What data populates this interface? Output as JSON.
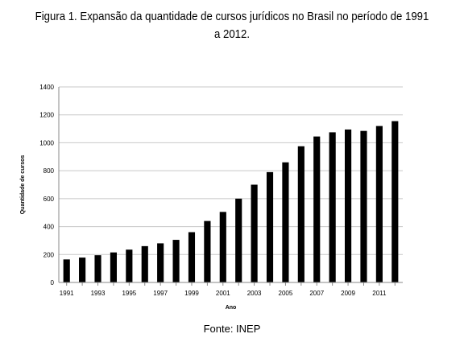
{
  "caption": {
    "line1": "Figura 1. Expansão da quantidade de cursos jurídicos no Brasil no período de 1991",
    "line2": "a 2012."
  },
  "source_note": "Fonte: INEP",
  "chart_data": {
    "type": "bar",
    "categories": [
      "1991",
      "1992",
      "1993",
      "1994",
      "1995",
      "1996",
      "1997",
      "1998",
      "1999",
      "2000",
      "2001",
      "2002",
      "2003",
      "2004",
      "2005",
      "2006",
      "2007",
      "2008",
      "2009",
      "2010",
      "2011",
      "2012"
    ],
    "values": [
      165,
      178,
      195,
      215,
      235,
      260,
      280,
      305,
      360,
      440,
      505,
      600,
      700,
      790,
      860,
      975,
      1045,
      1075,
      1095,
      1085,
      1120,
      1155
    ],
    "x_tick_labels": [
      "1991",
      "1993",
      "1995",
      "1997",
      "1999",
      "2001",
      "2003",
      "2005",
      "2007",
      "2009",
      "2011"
    ],
    "y_ticks": [
      0,
      200,
      400,
      600,
      800,
      1000,
      1200,
      1400
    ],
    "ylim": [
      0,
      1400
    ],
    "xlabel": "Ano",
    "ylabel": "Quantidade de cursos",
    "bar_color": "#000000",
    "grid": true,
    "grid_color": "#c8c8c8"
  }
}
